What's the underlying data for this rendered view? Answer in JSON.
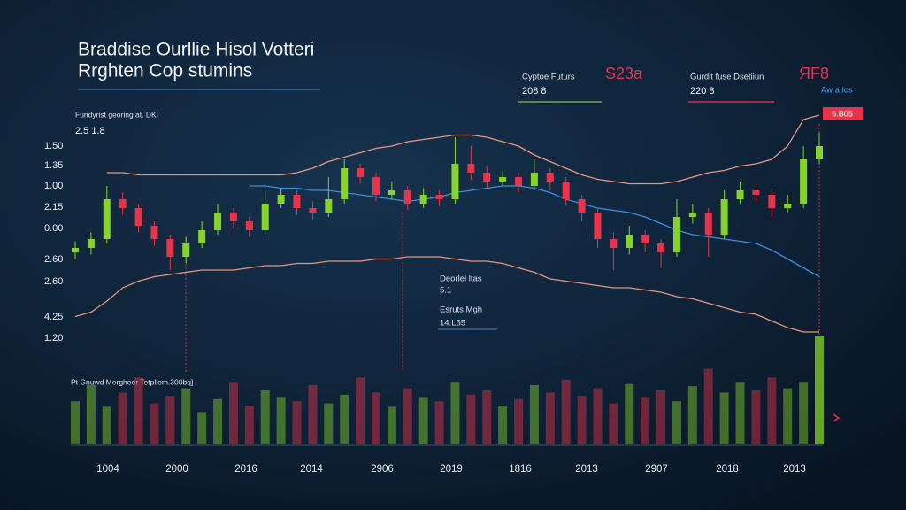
{
  "chart_data": {
    "type": "candlestick",
    "title": "Braddise Ourllie Hisol Votteri",
    "subtitle": "Rrghten Cop stumins",
    "panels": [
      {
        "label": "Cyptoe Futurs",
        "value": "208 8",
        "change": "S23a"
      },
      {
        "label": "Gurdit fuse Dsetiiun",
        "value": "220 8",
        "change": "ЯF8",
        "note": "Aw a los"
      }
    ],
    "chart_label": "Fundyrist georing at. DKI",
    "chart_value": "2.5 1.8",
    "price_tag": "6.B05",
    "annotations": [
      {
        "label": "Deorlel ltas",
        "value": "5.1"
      },
      {
        "label": "Esruts Mgh",
        "value": "14.L55"
      }
    ],
    "volume_label": "Pt Gnuwd Mergheer Tetpliem.300bq]",
    "y_labels": [
      "1.50",
      "1.35",
      "1.00",
      "2.15",
      "0.00",
      "2.60",
      "2.60",
      "4.25",
      "1.20"
    ],
    "x_labels": [
      "1004",
      "2000",
      "2016",
      "2014",
      "2906",
      "2019",
      "1816",
      "2013",
      "2907",
      "2018",
      "2013"
    ],
    "ylim": [
      0,
      100
    ],
    "volume_ylim": [
      0,
      100
    ],
    "up_color": "#86d42a",
    "down_color": "#e8334a",
    "open": [
      38,
      40,
      44,
      62,
      58,
      50,
      44,
      36,
      42,
      48,
      56,
      52,
      48,
      60,
      64,
      58,
      56,
      62,
      76,
      72,
      64,
      66,
      60,
      64,
      62,
      78,
      74,
      70,
      72,
      68,
      74,
      70,
      62,
      56,
      44,
      40,
      46,
      42,
      38,
      54,
      56,
      46,
      62,
      66,
      64,
      58,
      60,
      80
    ],
    "high": [
      43,
      47,
      68,
      65,
      60,
      52,
      46,
      45,
      52,
      60,
      58,
      54,
      66,
      67,
      66,
      61,
      72,
      80,
      78,
      74,
      70,
      68,
      67,
      66,
      90,
      86,
      77,
      75,
      74,
      80,
      76,
      72,
      64,
      58,
      47,
      50,
      48,
      44,
      62,
      60,
      58,
      66,
      70,
      68,
      66,
      64,
      86,
      92
    ],
    "low": [
      35,
      37,
      42,
      55,
      47,
      41,
      30,
      33,
      40,
      46,
      49,
      45,
      46,
      58,
      55,
      53,
      54,
      60,
      69,
      61,
      62,
      57,
      58,
      59,
      60,
      71,
      67,
      68,
      65,
      66,
      66,
      59,
      52,
      40,
      30,
      37,
      38,
      31,
      36,
      51,
      36,
      44,
      60,
      60,
      54,
      56,
      58,
      78
    ],
    "close": [
      40,
      44,
      62,
      58,
      50,
      44,
      36,
      42,
      48,
      56,
      52,
      48,
      60,
      64,
      58,
      56,
      62,
      76,
      72,
      64,
      66,
      60,
      64,
      62,
      78,
      74,
      70,
      72,
      68,
      74,
      70,
      62,
      56,
      44,
      40,
      46,
      42,
      38,
      54,
      56,
      46,
      62,
      66,
      64,
      58,
      60,
      80,
      86
    ],
    "volume": [
      40,
      55,
      35,
      48,
      62,
      38,
      45,
      52,
      30,
      42,
      58,
      36,
      50,
      44,
      40,
      55,
      38,
      46,
      62,
      48,
      35,
      52,
      44,
      40,
      58,
      46,
      50,
      36,
      42,
      55,
      48,
      60,
      45,
      52,
      38,
      56,
      44,
      50,
      40,
      54,
      70,
      48,
      58,
      50,
      62,
      52,
      58,
      100
    ],
    "lines": [
      {
        "color": "#e8957a",
        "values": [
          null,
          null,
          74,
          74,
          73,
          73,
          73,
          73,
          73,
          73,
          73,
          73,
          73,
          73,
          74,
          76,
          79,
          81,
          83,
          85,
          86,
          88,
          89,
          90,
          91,
          91,
          90,
          88,
          86,
          82,
          79,
          76,
          73,
          71,
          70,
          69,
          69,
          69,
          70,
          72,
          74,
          75,
          77,
          78,
          80,
          86,
          98,
          100
        ]
      },
      {
        "color": "#e8957a",
        "values": [
          9,
          11,
          16,
          22,
          25,
          27,
          28,
          29,
          30,
          30,
          30,
          31,
          32,
          32,
          33,
          33,
          34,
          34,
          34,
          35,
          35,
          36,
          36,
          36,
          35,
          34,
          34,
          33,
          31,
          29,
          26,
          25,
          24,
          23,
          22,
          22,
          21,
          20,
          18,
          17,
          15,
          13,
          11,
          10,
          7,
          4,
          2,
          2
        ]
      },
      {
        "color": "#3a8fd8",
        "values": [
          null,
          null,
          null,
          null,
          null,
          null,
          null,
          null,
          null,
          null,
          null,
          68,
          68,
          67,
          67,
          66,
          66,
          65,
          64,
          63,
          62,
          61,
          62,
          63,
          65,
          66,
          67,
          68,
          68,
          67,
          65,
          62,
          60,
          58,
          57,
          56,
          54,
          51,
          48,
          46,
          45,
          44,
          43,
          42,
          39,
          35,
          31,
          27
        ]
      }
    ]
  }
}
